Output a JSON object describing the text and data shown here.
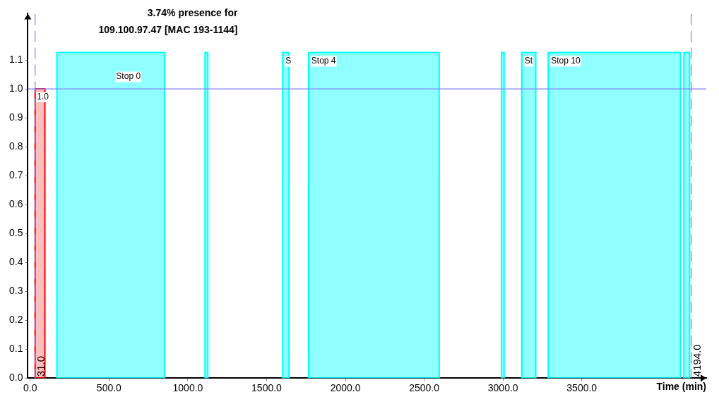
{
  "chart_data": {
    "type": "histogram",
    "title": "3.74% presence for\n109.100.97.47 [MAC 193-1144]",
    "xlabel": "Time (min)",
    "bins": [
      31,
      93
    ],
    "values": [
      1.0
    ],
    "color": "#ff0000",
    "value_labels": [
      "1.0"
    ],
    "xlim": [
      -15,
      4290
    ],
    "ylim": [
      0,
      1.26
    ],
    "xticks": [
      {
        "value": 0,
        "label": "0.0"
      },
      {
        "value": 500,
        "label": "500.0"
      },
      {
        "value": 1000,
        "label": "1000.0"
      },
      {
        "value": 1500,
        "label": "1500.0"
      },
      {
        "value": 2000,
        "label": "2000.0"
      },
      {
        "value": 2500,
        "label": "2500.0"
      },
      {
        "value": 3000,
        "label": "3000.0"
      },
      {
        "value": 3500,
        "label": "3500.0"
      }
    ],
    "yticks": [
      {
        "value": 0,
        "label": "0.0"
      },
      {
        "value": 0.1,
        "label": "0.1"
      },
      {
        "value": 0.2,
        "label": "0.2"
      },
      {
        "value": 0.3,
        "label": "0.3"
      },
      {
        "value": 0.4,
        "label": "0.4"
      },
      {
        "value": 0.5,
        "label": "0.5"
      },
      {
        "value": 0.6,
        "label": "0.6"
      },
      {
        "value": 0.7,
        "label": "0.7"
      },
      {
        "value": 0.8,
        "label": "0.8"
      },
      {
        "value": 0.9,
        "label": "0.9"
      },
      {
        "value": 1.0,
        "label": "1.0"
      },
      {
        "value": 1.1,
        "label": "1.1"
      }
    ],
    "grid": false,
    "legend": false,
    "ref_lines": [
      {
        "axis": "y",
        "value": 1.0,
        "label": null,
        "color": "#8080ff",
        "line_style": "solid"
      },
      {
        "axis": "x",
        "value": 31,
        "label": "31.0",
        "color": "#8080ff",
        "line_style": "dashed"
      },
      {
        "axis": "x",
        "value": 4194,
        "label": "4194.0",
        "color": "#8080ff",
        "line_style": "dashed"
      }
    ],
    "bands": [
      {
        "axis": "x",
        "from": 169,
        "to": 852,
        "label": "Stop 0",
        "color": "#00ffff"
      },
      {
        "axis": "x",
        "from": 1109,
        "to": 1127,
        "label": null,
        "color": "#00ffff"
      },
      {
        "axis": "x",
        "from": 1602,
        "to": 1642,
        "label": "S",
        "color": "#00ffff"
      },
      {
        "axis": "x",
        "from": 1766,
        "to": 2595,
        "label": "Stop 4",
        "color": "#00ffff"
      },
      {
        "axis": "x",
        "from": 2991,
        "to": 3007,
        "label": null,
        "color": "#00ffff"
      },
      {
        "axis": "x",
        "from": 3119,
        "to": 3208,
        "label": "St",
        "color": "#00ffff"
      },
      {
        "axis": "x",
        "from": 3287,
        "to": 4126,
        "label": "Stop 10",
        "color": "#00ffff"
      },
      {
        "axis": "x",
        "from": 4148,
        "to": 4184,
        "label": null,
        "color": "#00ffff"
      }
    ]
  }
}
